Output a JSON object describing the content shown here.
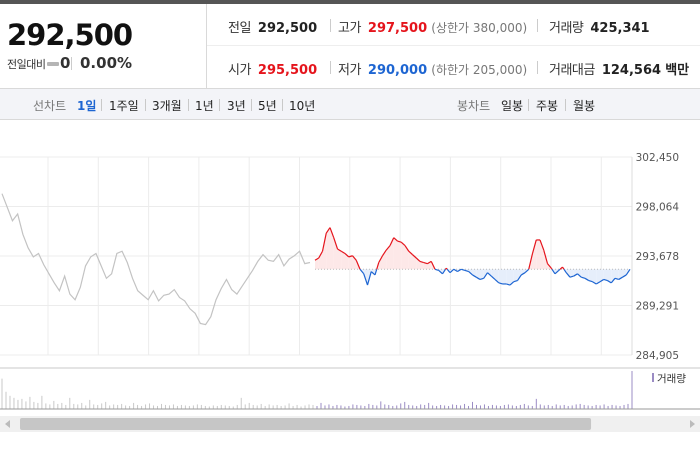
{
  "price": {
    "current": "292,500",
    "change_label": "전일대비",
    "change_value": "0",
    "change_rate": "0.00%"
  },
  "stats": {
    "prev_close": {
      "label": "전일",
      "value": "292,500"
    },
    "high": {
      "label": "고가",
      "value": "297,500",
      "sub": "(상한가 380,000)"
    },
    "volume": {
      "label": "거래량",
      "value": "425,341"
    },
    "open": {
      "label": "시가",
      "value": "295,500"
    },
    "low": {
      "label": "저가",
      "value": "290,000",
      "sub": "(하한가 205,000)"
    },
    "amount": {
      "label": "거래대금",
      "value": "124,564",
      "unit": "백만"
    }
  },
  "period_bar": {
    "line_chart_label": "선차트",
    "line_periods": [
      "1일",
      "1주일",
      "3개월",
      "1년",
      "3년",
      "5년",
      "10년"
    ],
    "active_period": "1일",
    "candle_chart_label": "봉차트",
    "candle_periods": [
      "일봉",
      "주봉",
      "월봉"
    ]
  },
  "chart_data": {
    "type": "line",
    "y_ticks": [
      "302,450",
      "298,064",
      "293,678",
      "289,291",
      "284,905"
    ],
    "ylim": [
      284905,
      302450
    ],
    "baseline": 292500,
    "volume_legend": "거래량",
    "colors": {
      "up": "#e5141c",
      "down": "#1d65d2",
      "prev_day": "#c3c3c3",
      "volume": "#9b8cc4"
    },
    "series": [
      {
        "values": [
          299200,
          298000,
          296800,
          297400,
          295600,
          294400,
          293600,
          293900,
          292900,
          292100,
          291300,
          290600,
          291900,
          290300,
          289800,
          290900,
          292800,
          293600,
          293900,
          292800,
          291700,
          292100,
          293900,
          294100,
          293100,
          291700,
          290600,
          290200,
          289800,
          290600,
          289700,
          290200,
          290300,
          290700,
          290000,
          289700,
          289000,
          288600,
          287700,
          287600,
          288300,
          289800,
          290800,
          291600,
          290700,
          290300,
          291000,
          291700,
          292400,
          293200,
          293800,
          293300,
          293200,
          293800,
          292800,
          293400,
          293700,
          294100,
          293000,
          293100
        ]
      },
      {
        "values": [
          293300,
          293500,
          294100,
          295700,
          296200,
          295300,
          294300,
          294100,
          293900,
          293600,
          293700,
          293300,
          292500,
          292100,
          291100,
          292300,
          292000,
          293100,
          293700,
          294200,
          294600,
          295300,
          295000,
          294900,
          294600,
          294100,
          293800,
          293500,
          293200,
          293100,
          293000,
          293200,
          292500,
          292400,
          292100,
          292600,
          292200,
          292500,
          292300,
          292500,
          292400,
          292300,
          292000,
          291800,
          291600,
          291700,
          292200,
          291900,
          291600,
          291300,
          291200,
          291200,
          291100,
          291400,
          291500,
          292000,
          292200,
          292500,
          293900,
          295100,
          295100,
          294200,
          293000,
          292600,
          292100,
          292400,
          292700,
          292200,
          291800,
          291900,
          292100,
          291800,
          291700,
          291500,
          291400,
          291200,
          291400,
          291600,
          291500,
          291300,
          291700,
          291600,
          291800,
          292000,
          292500
        ]
      }
    ],
    "volume": [
      60,
      34,
      26,
      22,
      18,
      20,
      15,
      24,
      14,
      12,
      26,
      11,
      9,
      16,
      10,
      12,
      8,
      22,
      10,
      9,
      12,
      7,
      18,
      9,
      8,
      11,
      14,
      7,
      9,
      8,
      10,
      7,
      6,
      12,
      8,
      6,
      9,
      11,
      7,
      6,
      10,
      8,
      7,
      9,
      6,
      8,
      7,
      6,
      7,
      9,
      8,
      6,
      5,
      7,
      6,
      8,
      7,
      6,
      5,
      8,
      22,
      9,
      12,
      8,
      7,
      10,
      6,
      9,
      7,
      8,
      6,
      7,
      11,
      6,
      8,
      5,
      7,
      9,
      8,
      6,
      12,
      7,
      9,
      6,
      8,
      7,
      5,
      6,
      9,
      8,
      7,
      6,
      10,
      8,
      7,
      15,
      9,
      8,
      6,
      7,
      11,
      14,
      8,
      7,
      6,
      9,
      8,
      12,
      7,
      6,
      8,
      7,
      6,
      9,
      8,
      7,
      10,
      6,
      14,
      8,
      7,
      9,
      6,
      8,
      7,
      6,
      8,
      9,
      7,
      6,
      8,
      10,
      7,
      6,
      20,
      9,
      7,
      8,
      6,
      9,
      7,
      8,
      6,
      7,
      9,
      10,
      8,
      7,
      6,
      8,
      7,
      9,
      6,
      8,
      7,
      6,
      8,
      10,
      75
    ]
  },
  "scrollbar": {
    "thumb_fraction": 0.86
  }
}
